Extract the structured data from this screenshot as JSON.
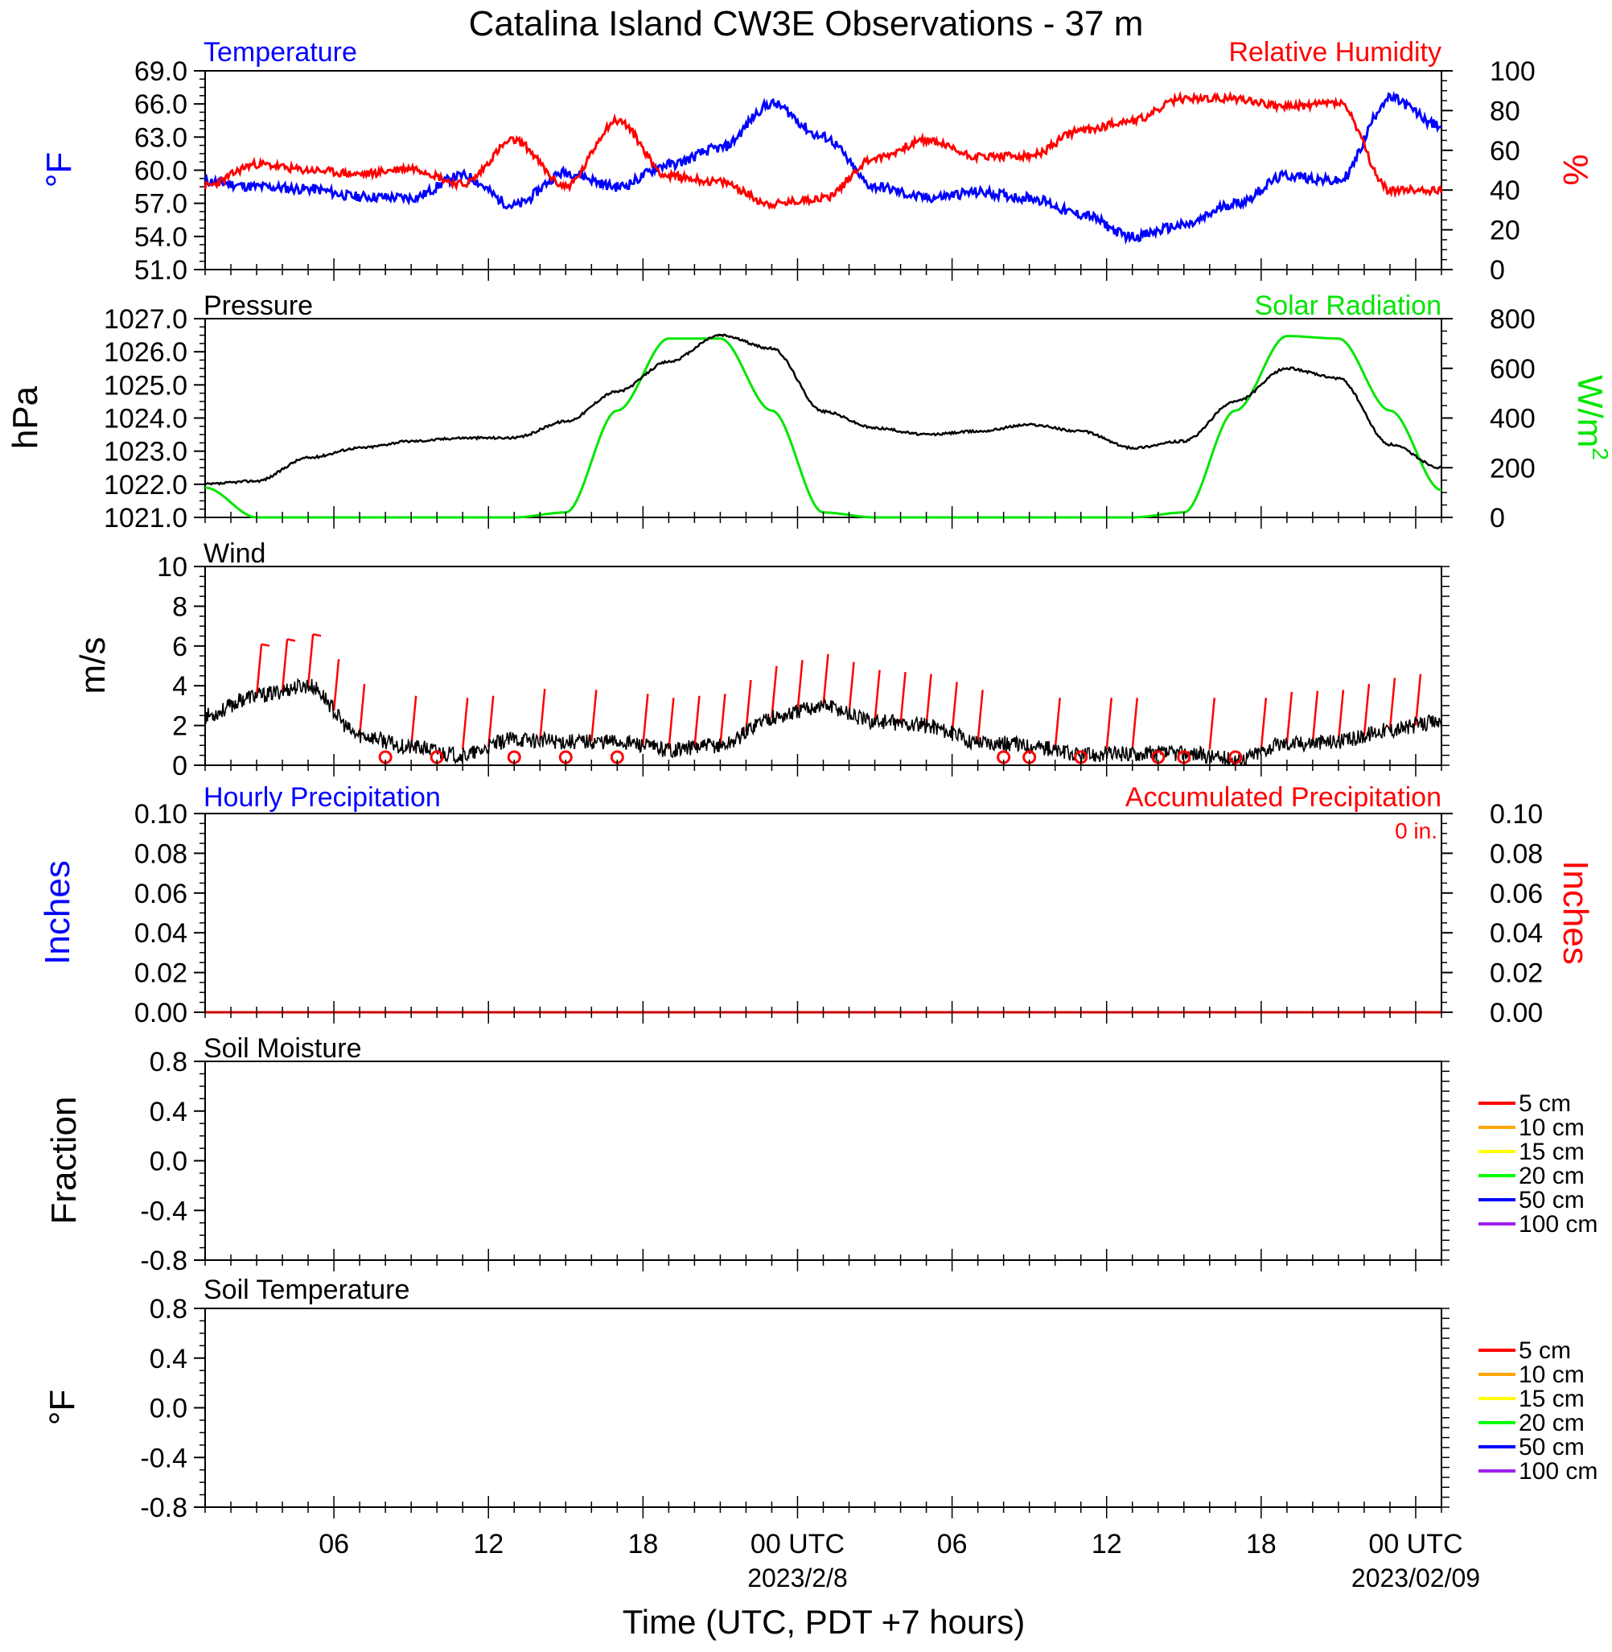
{
  "title": "Catalina Island CW3E Observations - 37 m",
  "x_axis": {
    "label": "Time (UTC, PDT +7 hours)",
    "range_hours": [
      0,
      48
    ],
    "ticks": [
      {
        "h": 5,
        "label": "06",
        "sub": ""
      },
      {
        "h": 11,
        "label": "12",
        "sub": ""
      },
      {
        "h": 17,
        "label": "18",
        "sub": ""
      },
      {
        "h": 23,
        "label": "00 UTC",
        "sub": "2023/2/8"
      },
      {
        "h": 29,
        "label": "06",
        "sub": ""
      },
      {
        "h": 35,
        "label": "12",
        "sub": ""
      },
      {
        "h": 41,
        "label": "18",
        "sub": ""
      },
      {
        "h": 47,
        "label": "00 UTC",
        "sub": "2023/02/09"
      }
    ]
  },
  "colors": {
    "temperature": "#0000ff",
    "humidity": "#ff0000",
    "pressure": "#000000",
    "solar": "#00e600",
    "wind": "#000000",
    "wind_barb": "#ff0000",
    "accum_precip": "#cc0000"
  },
  "panels": {
    "temp_rh": {
      "left_title": "Temperature",
      "right_title": "Relative Humidity",
      "left_unit": "°F",
      "right_unit": "%",
      "left_ticks": [
        "51.0",
        "54.0",
        "57.0",
        "60.0",
        "63.0",
        "66.0",
        "69.0"
      ],
      "right_ticks": [
        "0",
        "20",
        "40",
        "60",
        "80",
        "100"
      ]
    },
    "pressure_solar": {
      "left_title": "Pressure",
      "right_title": "Solar Radiation",
      "left_unit": "hPa",
      "right_unit": "W/m",
      "right_unit_sup": "2",
      "left_ticks": [
        "1021.0",
        "1022.0",
        "1023.0",
        "1024.0",
        "1025.0",
        "1026.0",
        "1027.0"
      ],
      "right_ticks": [
        "0",
        "200",
        "400",
        "600",
        "800"
      ]
    },
    "wind": {
      "left_title": "Wind",
      "left_unit": "m/s",
      "left_ticks": [
        "0",
        "2",
        "4",
        "6",
        "8",
        "10"
      ]
    },
    "precip": {
      "left_title": "Hourly Precipitation",
      "right_title": "Accumulated Precipitation",
      "total_label": "0 in.",
      "left_unit": "Inches",
      "right_unit": "Inches",
      "left_ticks": [
        "0.00",
        "0.02",
        "0.04",
        "0.06",
        "0.08",
        "0.10"
      ],
      "right_ticks": [
        "0.00",
        "0.02",
        "0.04",
        "0.06",
        "0.08",
        "0.10"
      ]
    },
    "soil_moisture": {
      "left_title": "Soil Moisture",
      "left_unit": "Fraction",
      "left_ticks": [
        "-0.8",
        "-0.4",
        "0.0",
        "0.4",
        "0.8"
      ],
      "legend": [
        {
          "label": "5 cm",
          "color": "#ff0000"
        },
        {
          "label": "10 cm",
          "color": "#ffa500"
        },
        {
          "label": "15 cm",
          "color": "#ffff00"
        },
        {
          "label": "20 cm",
          "color": "#00ff00"
        },
        {
          "label": "50 cm",
          "color": "#0000ff"
        },
        {
          "label": "100 cm",
          "color": "#a020f0"
        }
      ]
    },
    "soil_temperature": {
      "left_title": "Soil Temperature",
      "left_unit": "°F",
      "left_ticks": [
        "-0.8",
        "-0.4",
        "0.0",
        "0.4",
        "0.8"
      ],
      "legend": [
        {
          "label": "5 cm",
          "color": "#ff0000"
        },
        {
          "label": "10 cm",
          "color": "#ffa500"
        },
        {
          "label": "15 cm",
          "color": "#ffff00"
        },
        {
          "label": "20 cm",
          "color": "#00ff00"
        },
        {
          "label": "50 cm",
          "color": "#0000ff"
        },
        {
          "label": "100 cm",
          "color": "#a020f0"
        }
      ]
    }
  },
  "chart_data": {
    "type": "line",
    "x_units": "hours from 2023-02-07 01 UTC",
    "x": [
      0,
      2,
      4,
      6,
      8,
      10,
      12,
      14,
      16,
      18,
      20,
      22,
      24,
      26,
      28,
      30,
      32,
      34,
      36,
      38,
      40,
      42,
      44,
      46,
      48
    ],
    "series": [
      {
        "name": "Temperature",
        "unit": "°F",
        "ylim": [
          51,
          69
        ],
        "values": [
          59.0,
          58.5,
          58.3,
          57.6,
          57.5,
          59.5,
          56.8,
          59.8,
          58.5,
          60.5,
          62.0,
          66.0,
          63.0,
          58.5,
          57.5,
          58.0,
          57.5,
          56.0,
          54.0,
          55.0,
          57.0,
          59.5,
          59.0,
          66.5,
          64.0
        ]
      },
      {
        "name": "Relative Humidity",
        "unit": "%",
        "ylim": [
          0,
          100
        ],
        "values": [
          42,
          53,
          50,
          48,
          51,
          43,
          65,
          42,
          75,
          47,
          44,
          33,
          36,
          56,
          65,
          57,
          57,
          70,
          75,
          86,
          86,
          82,
          84,
          40,
          40
        ]
      },
      {
        "name": "Pressure",
        "unit": "hPa",
        "ylim": [
          1021,
          1027
        ],
        "values": [
          1022.0,
          1022.1,
          1022.8,
          1023.1,
          1023.3,
          1023.4,
          1023.4,
          1023.9,
          1024.8,
          1025.7,
          1026.5,
          1026.1,
          1024.2,
          1023.7,
          1023.5,
          1023.6,
          1023.8,
          1023.6,
          1023.1,
          1023.3,
          1024.5,
          1025.5,
          1025.2,
          1023.2,
          1022.5
        ]
      },
      {
        "name": "Solar Radiation",
        "unit": "W/m2",
        "ylim": [
          0,
          800
        ],
        "values": [
          120,
          0,
          0,
          0,
          0,
          0,
          0,
          20,
          430,
          720,
          720,
          430,
          20,
          0,
          0,
          0,
          0,
          0,
          0,
          20,
          430,
          730,
          720,
          430,
          110
        ]
      },
      {
        "name": "Wind",
        "unit": "m/s",
        "ylim": [
          0,
          10
        ],
        "values": [
          2.5,
          3.5,
          4.0,
          1.5,
          0.9,
          0.5,
          1.3,
          1.2,
          1.2,
          0.8,
          1.0,
          2.4,
          3.0,
          2.2,
          2.0,
          1.2,
          1.0,
          0.5,
          0.6,
          0.6,
          0.3,
          1.1,
          1.2,
          1.8,
          2.2
        ]
      },
      {
        "name": "Accumulated Precipitation",
        "unit": "in",
        "ylim": [
          0,
          0.1
        ],
        "values": [
          0,
          0,
          0,
          0,
          0,
          0,
          0,
          0,
          0,
          0,
          0,
          0,
          0,
          0,
          0,
          0,
          0,
          0,
          0,
          0,
          0,
          0,
          0,
          0,
          0
        ]
      }
    ],
    "calm_wind_hours": [
      7,
      9,
      12,
      14,
      16,
      31,
      32,
      34,
      37,
      38,
      40
    ]
  }
}
